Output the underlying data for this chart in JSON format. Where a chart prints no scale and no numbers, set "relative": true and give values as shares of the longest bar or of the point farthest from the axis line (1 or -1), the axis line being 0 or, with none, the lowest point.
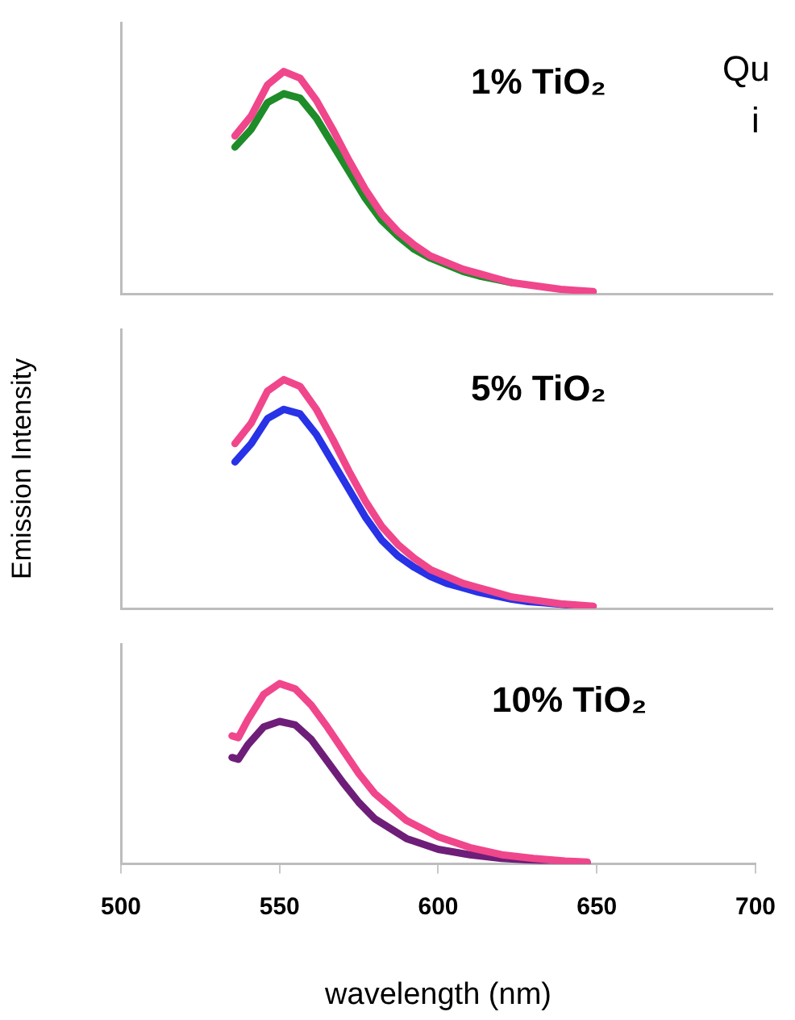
{
  "chart_data": [
    {
      "type": "line",
      "relative": true,
      "categories": [
        null,
        null,
        null,
        null,
        null,
        null,
        null,
        null,
        null,
        null,
        null,
        null,
        null,
        null,
        null,
        null,
        null,
        null,
        null,
        null,
        null,
        null,
        null,
        null,
        null,
        null,
        null,
        null,
        null,
        null,
        null,
        null,
        null,
        null,
        null,
        null,
        null,
        null,
        null,
        null,
        null
      ],
      "tick_labels": false,
      "grid": false,
      "legend": false,
      "marker": "none",
      "annotations": [
        "1% TiO₂",
        "Qu",
        "i"
      ],
      "series": [
        {
          "color": "#f0468c",
          "values": [
            null,
            null,
            null,
            null,
            null,
            null,
            null,
            0.71,
            0.8,
            0.94,
            1.0,
            0.97,
            0.87,
            0.74,
            0.6,
            0.47,
            0.36,
            0.28,
            0.22,
            0.17,
            0.14,
            0.11,
            0.09,
            0.07,
            0.05,
            0.04,
            0.03,
            0.02,
            0.015,
            0.01,
            null,
            null,
            null,
            null,
            null,
            null,
            null,
            null,
            null,
            null,
            null
          ]
        },
        {
          "color": "#1e8c28",
          "values": [
            null,
            null,
            null,
            null,
            null,
            null,
            null,
            0.66,
            0.74,
            0.86,
            0.9,
            0.88,
            0.79,
            0.67,
            0.55,
            0.43,
            0.33,
            0.26,
            0.2,
            0.16,
            0.13,
            0.1,
            0.08,
            0.065,
            0.05,
            null,
            null,
            null,
            null,
            null,
            null,
            null,
            null,
            null,
            null,
            null,
            null,
            null,
            null,
            null,
            null
          ]
        }
      ]
    },
    {
      "type": "line",
      "relative": true,
      "categories": [
        null,
        null,
        null,
        null,
        null,
        null,
        null,
        null,
        null,
        null,
        null,
        null,
        null,
        null,
        null,
        null,
        null,
        null,
        null,
        null,
        null,
        null,
        null,
        null,
        null,
        null,
        null,
        null,
        null,
        null,
        null,
        null,
        null,
        null,
        null,
        null,
        null,
        null,
        null,
        null,
        null
      ],
      "tick_labels": false,
      "grid": false,
      "legend": false,
      "marker": "none",
      "ylabel": "Emission Intensity",
      "annotations": [
        "5% TiO₂"
      ],
      "series": [
        {
          "color": "#f0468c",
          "values": [
            null,
            null,
            null,
            null,
            null,
            null,
            null,
            0.72,
            0.81,
            0.95,
            1.0,
            0.97,
            0.87,
            0.74,
            0.6,
            0.47,
            0.36,
            0.28,
            0.22,
            0.17,
            0.14,
            0.11,
            0.09,
            0.07,
            0.05,
            0.04,
            0.03,
            0.02,
            0.015,
            0.01,
            null,
            null,
            null,
            null,
            null,
            null,
            null,
            null,
            null,
            null,
            null
          ]
        },
        {
          "color": "#2832e6",
          "values": [
            null,
            null,
            null,
            null,
            null,
            null,
            null,
            0.64,
            0.72,
            0.83,
            0.87,
            0.85,
            0.76,
            0.64,
            0.52,
            0.4,
            0.3,
            0.23,
            0.18,
            0.14,
            0.11,
            0.09,
            0.07,
            0.055,
            0.04,
            0.03,
            0.025,
            0.018,
            0.012,
            null,
            null,
            null,
            null,
            null,
            null,
            null,
            null,
            null,
            null,
            null,
            null
          ]
        }
      ]
    },
    {
      "type": "line",
      "relative": true,
      "x": [
        535,
        537,
        540,
        545,
        550,
        555,
        560,
        565,
        570,
        575,
        580,
        590,
        600,
        610,
        620,
        630,
        640,
        647
      ],
      "xlim": [
        500,
        700
      ],
      "xticks": [
        500,
        550,
        600,
        650,
        700
      ],
      "tick_labels": "x",
      "grid": false,
      "legend": false,
      "marker": "none",
      "xlabel": "wavelength (nm)",
      "annotations": [
        "10% TiO₂"
      ],
      "series": [
        {
          "color": "#f0468c",
          "values": [
            0.71,
            0.7,
            0.8,
            0.94,
            1.0,
            0.97,
            0.88,
            0.76,
            0.63,
            0.5,
            0.39,
            0.24,
            0.15,
            0.09,
            0.05,
            0.03,
            0.015,
            0.01
          ]
        },
        {
          "color": "#6e1e78",
          "values": [
            0.59,
            0.58,
            0.66,
            0.76,
            0.79,
            0.77,
            0.69,
            0.57,
            0.45,
            0.34,
            0.25,
            0.14,
            0.08,
            0.05,
            0.03,
            0.02,
            0.01,
            0.005
          ]
        }
      ]
    }
  ]
}
